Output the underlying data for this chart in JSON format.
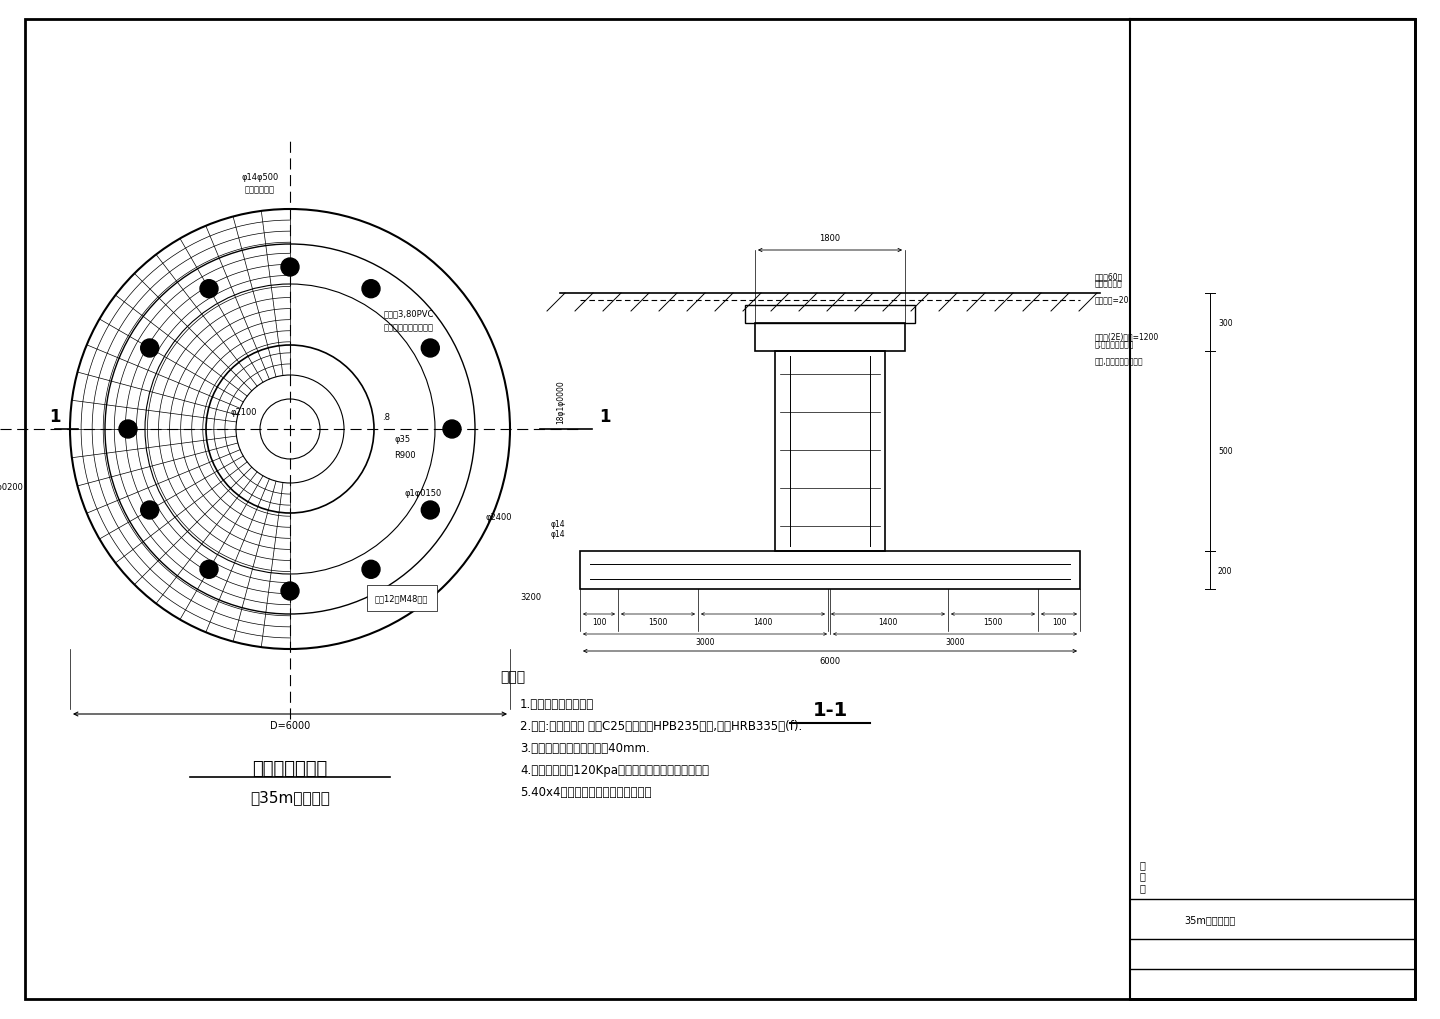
{
  "bg_color": "#ffffff",
  "line_color": "#000000",
  "title": "35m高杆灯基础",
  "plan_title": "基础平面布置图",
  "plan_subtitle": "（35m高杆灯）",
  "section_label": "1-1",
  "notes_title": "说明：",
  "section_notes": [
    "1.图中尺寸以毫米计。",
    "2.材料:混凝土等级 基础C25，钛筋类HPB235级（,）及HRB335级(f).",
    "3.混凝土保护层厚度：基础40mm.",
    "4.地基承载力为120Kpa，基础四周回填应分层夸实。",
    "5.40x4镀锌扁钐炚在杆底盘法兰上。"
  ]
}
